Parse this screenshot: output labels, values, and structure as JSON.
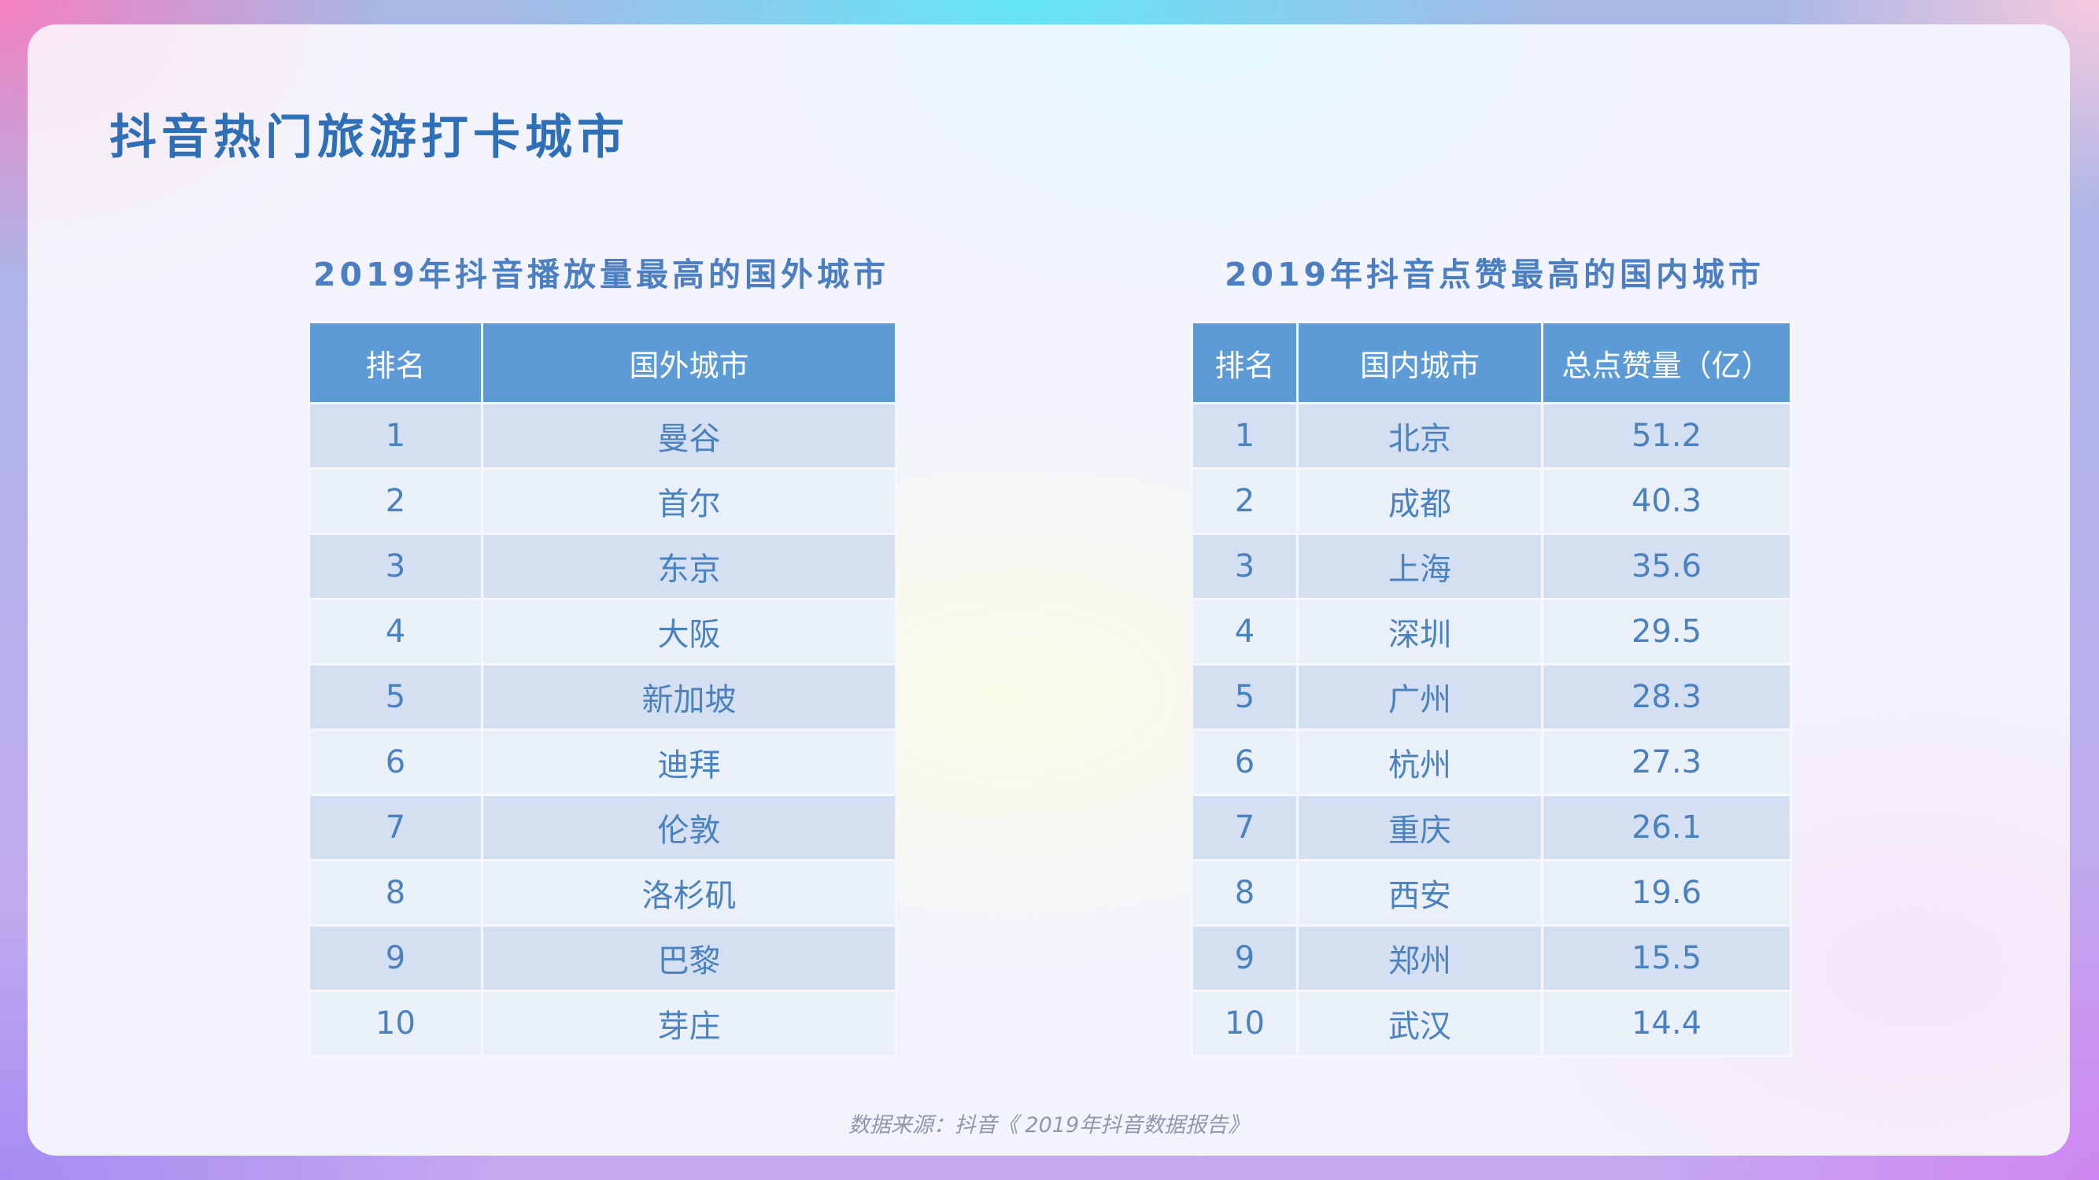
{
  "title": "抖音热门旅游打卡城市",
  "foreign": {
    "title": "2019年抖音播放量最高的国外城市",
    "headers": [
      "排名",
      "国外城市"
    ],
    "rows": [
      [
        "1",
        "曼谷"
      ],
      [
        "2",
        "首尔"
      ],
      [
        "3",
        "东京"
      ],
      [
        "4",
        "大阪"
      ],
      [
        "5",
        "新加坡"
      ],
      [
        "6",
        "迪拜"
      ],
      [
        "7",
        "伦敦"
      ],
      [
        "8",
        "洛杉矶"
      ],
      [
        "9",
        "巴黎"
      ],
      [
        "10",
        "芽庄"
      ]
    ]
  },
  "domestic": {
    "title": "2019年抖音点赞最高的国内城市",
    "headers": [
      "排名",
      "国内城市",
      "总点赞量（亿）"
    ],
    "rows": [
      [
        "1",
        "北京",
        "51.2"
      ],
      [
        "2",
        "成都",
        "40.3"
      ],
      [
        "3",
        "上海",
        "35.6"
      ],
      [
        "4",
        "深圳",
        "29.5"
      ],
      [
        "5",
        "广州",
        "28.3"
      ],
      [
        "6",
        "杭州",
        "27.3"
      ],
      [
        "7",
        "重庆",
        "26.1"
      ],
      [
        "8",
        "西安",
        "19.6"
      ],
      [
        "9",
        "郑州",
        "15.5"
      ],
      [
        "10",
        "武汉",
        "14.4"
      ]
    ]
  },
  "source": "数据来源：抖音《 2019年抖音数据报告》"
}
